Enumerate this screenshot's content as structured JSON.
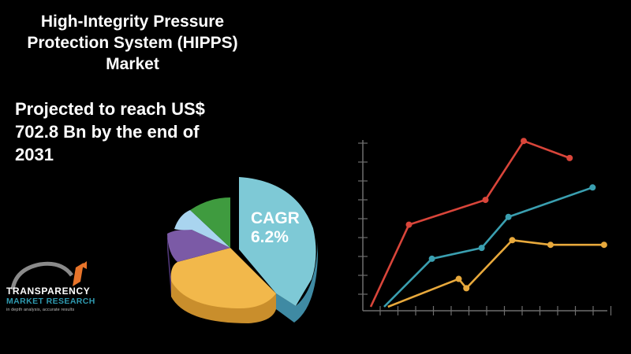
{
  "title_lines": [
    "High-Integrity Pressure",
    "Protection System (HIPPS)",
    "Market"
  ],
  "projection_lines": [
    "Projected to reach US$",
    "702.8 Bn by the end of",
    "2031"
  ],
  "cagr": {
    "label": "CAGR",
    "value": "6.2%"
  },
  "logo": {
    "line1": "TRANSPARENCY",
    "line2": "MARKET RESEARCH",
    "line3": "in depth analysis, accurate results"
  },
  "colors": {
    "background": "#000000",
    "pie_cagr": "#7ec9d6",
    "pie_yellow": "#f2b84b",
    "pie_purple": "#7b5aa6",
    "pie_lightblue": "#a9d4ef",
    "pie_green": "#3f9b3f",
    "line_red": "#d9453a",
    "line_teal": "#3a9fb0",
    "line_yellow": "#e8a93c"
  },
  "chart_data": {
    "type": "line",
    "axes_labels_shown": false,
    "grid": false,
    "series": [
      {
        "color": "#d9453a",
        "points": [
          [
            0,
            0
          ],
          [
            1,
            5.3
          ],
          [
            3,
            6.9
          ],
          [
            4,
            10.7
          ],
          [
            5.2,
            9.6
          ]
        ]
      },
      {
        "color": "#3a9fb0",
        "points": [
          [
            0.35,
            0
          ],
          [
            1.6,
            3.1
          ],
          [
            2.9,
            3.8
          ],
          [
            3.6,
            5.8
          ],
          [
            5.8,
            7.7
          ]
        ]
      },
      {
        "color": "#e8a93c",
        "points": [
          [
            0.45,
            0
          ],
          [
            2.3,
            1.8
          ],
          [
            2.5,
            1.2
          ],
          [
            3.7,
            4.3
          ],
          [
            4.7,
            4.0
          ],
          [
            6.1,
            4.0
          ]
        ]
      }
    ]
  }
}
